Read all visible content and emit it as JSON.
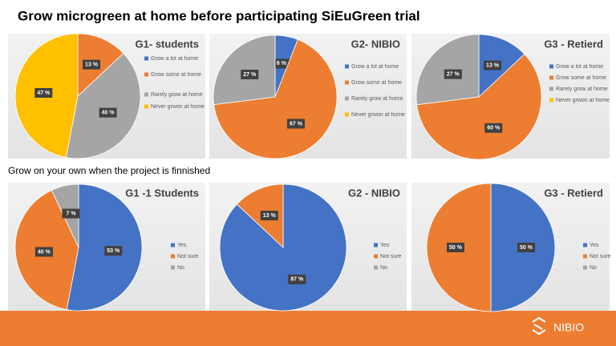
{
  "slide": {
    "title": "Grow microgreen at home before participating SiEuGreen trial",
    "section_title": "Grow on your own when the project is finnished",
    "logo": "NIBIO"
  },
  "chart_data": [
    {
      "type": "pie",
      "title": "G1- students",
      "categories": [
        "Grow a lot at home",
        "Grow some at home",
        "Rarely grow at home",
        "Never grwon at home"
      ],
      "values": [
        0,
        13,
        40,
        47
      ],
      "value_labels": [
        null,
        "13 %",
        "40 %",
        "47 %"
      ],
      "colors": [
        "#4472c4",
        "#ed7d31",
        "#a5a5a5",
        "#ffc000"
      ]
    },
    {
      "type": "pie",
      "title": "G2- NIBIO",
      "categories": [
        "Grow a lot at home",
        "Grow some at home",
        "Rarely grow at home",
        "Never grwon at home"
      ],
      "values": [
        6,
        67,
        27,
        0
      ],
      "value_labels": [
        "6 %",
        "67 %",
        "27 %",
        null
      ],
      "colors": [
        "#4472c4",
        "#ed7d31",
        "#a5a5a5",
        "#ffc000"
      ]
    },
    {
      "type": "pie",
      "title": "G3 - Retierd",
      "categories": [
        "Grow a lot at home",
        "Grow some at home",
        "Rarely grow at home",
        "Never grwon at home"
      ],
      "values": [
        13,
        60,
        27,
        0
      ],
      "value_labels": [
        "13 %",
        "60 %",
        "27 %",
        null
      ],
      "colors": [
        "#4472c4",
        "#ed7d31",
        "#a5a5a5",
        "#ffc000"
      ]
    },
    {
      "type": "pie",
      "title": "G1 -1 Students",
      "categories": [
        "Yes",
        "Not sure",
        "No"
      ],
      "values": [
        53,
        40,
        7
      ],
      "value_labels": [
        "53 %",
        "40 %",
        "7 %"
      ],
      "colors": [
        "#4472c4",
        "#ed7d31",
        "#a5a5a5"
      ]
    },
    {
      "type": "pie",
      "title": "G2 - NIBIO",
      "categories": [
        "Yes",
        "Not sure",
        "No"
      ],
      "values": [
        87,
        13,
        0
      ],
      "value_labels": [
        "87 %",
        "13 %",
        null
      ],
      "colors": [
        "#4472c4",
        "#ed7d31",
        "#a5a5a5"
      ]
    },
    {
      "type": "pie",
      "title": "G3 - Retierd",
      "categories": [
        "Yes",
        "Not sure",
        "No"
      ],
      "values": [
        50,
        50,
        0
      ],
      "value_labels": [
        "50 %",
        "50 %",
        null
      ],
      "colors": [
        "#4472c4",
        "#ed7d31",
        "#a5a5a5"
      ]
    }
  ]
}
